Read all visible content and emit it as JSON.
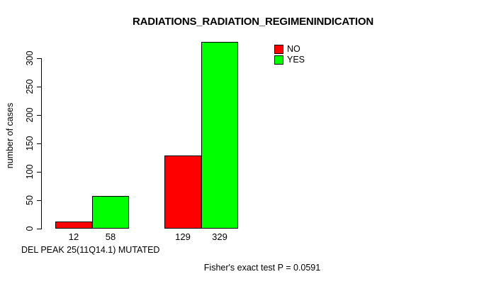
{
  "chart_data": {
    "type": "bar",
    "title": "RADIATIONS_RADIATION_REGIMENINDICATION",
    "ylabel": "number of cases",
    "x_caption": "DEL PEAK 25(11Q14.1) MUTATED",
    "footer": "Fisher's exact test P = 0.0591",
    "series": [
      {
        "name": "NO",
        "color": "#ff0000",
        "values": [
          12,
          129
        ]
      },
      {
        "name": "YES",
        "color": "#00ff00",
        "values": [
          58,
          329
        ]
      }
    ],
    "bar_value_labels": [
      [
        "12",
        "129"
      ],
      [
        "58",
        "329"
      ]
    ],
    "yticks": [
      0,
      50,
      100,
      150,
      200,
      250,
      300
    ],
    "ylim": [
      0,
      330
    ],
    "grid": false,
    "legend_position": "top-right"
  },
  "colors": {
    "background": "#ffffff",
    "axis": "#000000",
    "text": "#000000",
    "no_bar": "#ff0000",
    "yes_bar": "#00ff00"
  }
}
